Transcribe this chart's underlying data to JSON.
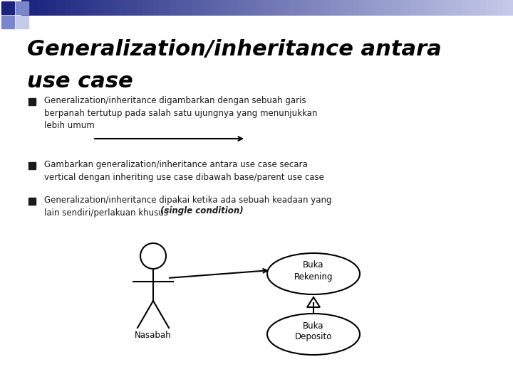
{
  "title_line1": "Generalization/inheritance antara",
  "title_line2": "use case",
  "title_fontsize": 22,
  "bg_color": "#ffffff",
  "bullet_color": "#1a1a1a",
  "bullet_size": 8.5,
  "bullet1": "Generalization/inheritance digambarkan dengan sebuah garis\nberpanah tertutup pada salah satu ujungnya yang menunjukkan\nlebih umum",
  "bullet2": "Gambarkan generalization/inheritance antara use case secara\nvertical dengan inheriting use case dibawah base/parent use case",
  "bullet3_normal": "Generalization/inheritance dipakai ketika ada sebuah keadaan yang\nlain sendiri/perlakuan khusus ",
  "bullet3_italic": "(single condition)",
  "header_dark": "#1a237e",
  "header_mid": "#7986cb",
  "header_light": "#c5cae9"
}
